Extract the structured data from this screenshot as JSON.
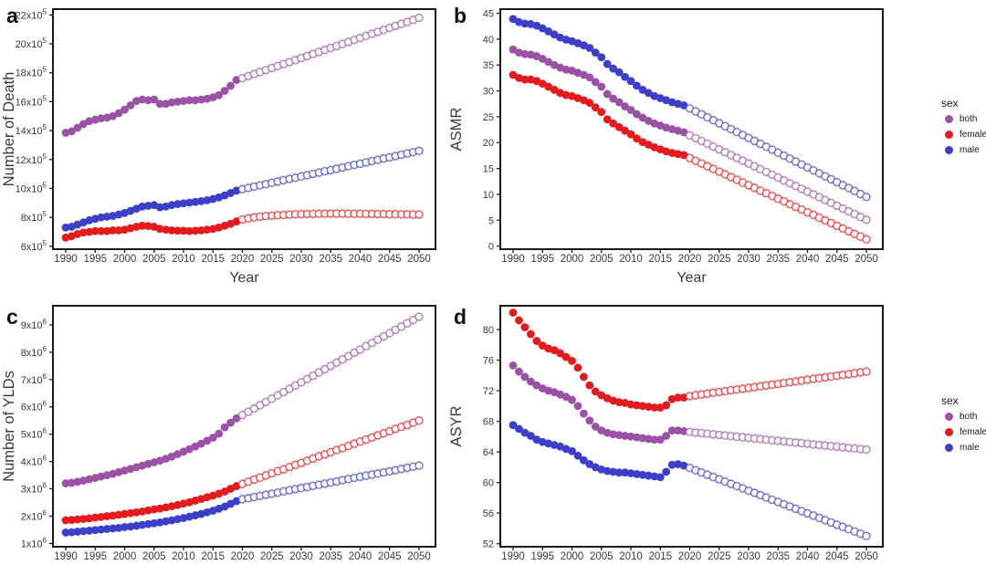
{
  "figure": {
    "background": "#ffffff"
  },
  "legend": {
    "title": "sex",
    "items": [
      {
        "label": "both",
        "color": "#9B51A5"
      },
      {
        "label": "female",
        "color": "#E41A1C"
      },
      {
        "label": "male",
        "color": "#3B3FC9"
      }
    ]
  },
  "chart_data": [
    {
      "id": "a",
      "row": 1,
      "type": "scatter",
      "panel_label": "a",
      "xlabel": "Year",
      "ylabel": "Number of Death",
      "x_range": [
        1990,
        2050
      ],
      "x_ticks": [
        1990,
        1995,
        2000,
        2005,
        2010,
        2015,
        2020,
        2025,
        2030,
        2035,
        2040,
        2045,
        2050
      ],
      "ylim": [
        5.8,
        22.4
      ],
      "y_scale_note": "values in units of 1e5",
      "y_ticks": [
        {
          "v": 6,
          "label": "6x10^5"
        },
        {
          "v": 8,
          "label": "8x10^5"
        },
        {
          "v": 10,
          "label": "10x10^5"
        },
        {
          "v": 12,
          "label": "12x10^5"
        },
        {
          "v": 14,
          "label": "14x10^5"
        },
        {
          "v": 16,
          "label": "16x10^5"
        },
        {
          "v": 18,
          "label": "18x10^5"
        },
        {
          "v": 20,
          "label": "20x10^5"
        },
        {
          "v": 22,
          "label": "22x10^5"
        }
      ],
      "filled_until": 2019,
      "grid": false,
      "legend_position": "outside-right",
      "series": [
        {
          "name": "both",
          "color": "#9B51A5",
          "values": [
            13.85,
            13.95,
            14.2,
            14.45,
            14.65,
            14.75,
            14.85,
            14.9,
            15.0,
            15.2,
            15.45,
            15.75,
            16.05,
            16.15,
            16.1,
            16.15,
            15.85,
            15.85,
            15.95,
            16.0,
            16.05,
            16.1,
            16.1,
            16.15,
            16.2,
            16.3,
            16.45,
            16.75,
            17.1,
            17.5,
            17.63,
            17.77,
            17.91,
            18.05,
            18.19,
            18.33,
            18.46,
            18.6,
            18.74,
            18.88,
            19.02,
            19.16,
            19.3,
            19.44,
            19.58,
            19.72,
            19.85,
            19.99,
            20.13,
            20.27,
            20.41,
            20.55,
            20.69,
            20.83,
            20.97,
            21.11,
            21.24,
            21.38,
            21.52,
            21.66,
            21.8
          ]
        },
        {
          "name": "female",
          "color": "#E41A1C",
          "values": [
            6.6,
            6.7,
            6.85,
            6.95,
            7.0,
            7.05,
            7.05,
            7.05,
            7.1,
            7.1,
            7.15,
            7.25,
            7.35,
            7.42,
            7.4,
            7.35,
            7.2,
            7.15,
            7.1,
            7.08,
            7.08,
            7.05,
            7.08,
            7.1,
            7.15,
            7.2,
            7.3,
            7.42,
            7.55,
            7.72,
            7.85,
            7.93,
            8.0,
            8.05,
            8.09,
            8.12,
            8.15,
            8.17,
            8.19,
            8.21,
            8.22,
            8.23,
            8.24,
            8.25,
            8.25,
            8.26,
            8.26,
            8.26,
            8.25,
            8.25,
            8.25,
            8.24,
            8.24,
            8.23,
            8.23,
            8.22,
            8.22,
            8.21,
            8.21,
            8.2,
            8.2
          ]
        },
        {
          "name": "male",
          "color": "#3B3FC9",
          "values": [
            7.3,
            7.35,
            7.5,
            7.65,
            7.8,
            7.9,
            8.0,
            8.05,
            8.1,
            8.2,
            8.3,
            8.45,
            8.6,
            8.75,
            8.8,
            8.85,
            8.7,
            8.75,
            8.85,
            8.92,
            8.97,
            9.02,
            9.07,
            9.12,
            9.18,
            9.27,
            9.38,
            9.52,
            9.68,
            9.85,
            9.95,
            10.04,
            10.13,
            10.22,
            10.3,
            10.39,
            10.48,
            10.57,
            10.66,
            10.74,
            10.83,
            10.92,
            11.01,
            11.1,
            11.19,
            11.27,
            11.36,
            11.45,
            11.54,
            11.63,
            11.71,
            11.8,
            11.89,
            11.98,
            12.07,
            12.15,
            12.24,
            12.33,
            12.42,
            12.51,
            12.6
          ]
        }
      ]
    },
    {
      "id": "b",
      "row": 1,
      "type": "scatter",
      "panel_label": "b",
      "xlabel": "Year",
      "ylabel": "ASMR",
      "x_range": [
        1990,
        2050
      ],
      "x_ticks": [
        1990,
        1995,
        2000,
        2005,
        2010,
        2015,
        2020,
        2025,
        2030,
        2035,
        2040,
        2045,
        2050
      ],
      "ylim": [
        -0.6,
        45.8
      ],
      "y_ticks": [
        {
          "v": 0,
          "label": "0"
        },
        {
          "v": 5,
          "label": "5"
        },
        {
          "v": 10,
          "label": "10"
        },
        {
          "v": 15,
          "label": "15"
        },
        {
          "v": 20,
          "label": "20"
        },
        {
          "v": 25,
          "label": "25"
        },
        {
          "v": 30,
          "label": "30"
        },
        {
          "v": 35,
          "label": "35"
        },
        {
          "v": 40,
          "label": "40"
        },
        {
          "v": 45,
          "label": "45"
        }
      ],
      "filled_until": 2019,
      "grid": false,
      "legend_position": "outside-right",
      "series": [
        {
          "name": "both",
          "color": "#9B51A5",
          "values": [
            38.0,
            37.4,
            37.1,
            37.0,
            36.7,
            36.2,
            35.6,
            35.0,
            34.5,
            34.1,
            33.9,
            33.5,
            33.1,
            32.6,
            31.7,
            30.8,
            29.4,
            28.5,
            27.8,
            27.0,
            26.3,
            25.5,
            24.8,
            24.2,
            23.7,
            23.3,
            22.9,
            22.6,
            22.3,
            22.0,
            21.4,
            20.86,
            20.31,
            19.77,
            19.23,
            18.68,
            18.14,
            17.59,
            17.05,
            16.51,
            15.96,
            15.42,
            14.87,
            14.33,
            13.79,
            13.24,
            12.7,
            12.15,
            11.61,
            11.07,
            10.52,
            9.98,
            9.43,
            8.89,
            8.35,
            7.8,
            7.26,
            6.71,
            6.17,
            5.63,
            5.1
          ]
        },
        {
          "name": "female",
          "color": "#E41A1C",
          "values": [
            33.1,
            32.5,
            32.2,
            32.2,
            31.9,
            31.4,
            30.8,
            30.2,
            29.6,
            29.2,
            29.0,
            28.6,
            28.2,
            27.7,
            26.8,
            25.9,
            24.5,
            23.7,
            23.0,
            22.3,
            21.6,
            20.8,
            20.1,
            19.6,
            19.1,
            18.7,
            18.3,
            18.0,
            17.8,
            17.6,
            17.0,
            16.48,
            15.95,
            15.43,
            14.91,
            14.38,
            13.86,
            13.34,
            12.81,
            12.29,
            11.77,
            11.24,
            10.72,
            10.2,
            9.67,
            9.15,
            8.63,
            8.1,
            7.58,
            7.06,
            6.53,
            6.01,
            5.49,
            4.96,
            4.44,
            3.92,
            3.39,
            2.87,
            2.35,
            1.82,
            1.3
          ]
        },
        {
          "name": "male",
          "color": "#3B3FC9",
          "values": [
            43.9,
            43.3,
            43.0,
            42.9,
            42.6,
            42.1,
            41.5,
            40.9,
            40.3,
            39.9,
            39.6,
            39.2,
            38.8,
            38.3,
            37.4,
            36.5,
            35.2,
            34.3,
            33.6,
            32.7,
            31.9,
            31.0,
            30.2,
            29.6,
            29.0,
            28.6,
            28.2,
            27.8,
            27.5,
            27.2,
            26.6,
            26.03,
            25.46,
            24.89,
            24.32,
            23.75,
            23.18,
            22.61,
            22.04,
            21.47,
            20.9,
            20.33,
            19.76,
            19.19,
            18.62,
            18.05,
            17.48,
            16.91,
            16.34,
            15.77,
            15.2,
            14.63,
            14.06,
            13.49,
            12.92,
            12.35,
            11.78,
            11.21,
            10.64,
            10.07,
            9.5
          ]
        }
      ]
    },
    {
      "id": "c",
      "row": 2,
      "type": "scatter",
      "panel_label": "c",
      "xlabel": "",
      "ylabel": "Number of YLDs",
      "x_range": [
        1990,
        2050
      ],
      "x_ticks": [
        1990,
        1995,
        2000,
        2005,
        2010,
        2015,
        2020,
        2025,
        2030,
        2035,
        2040,
        2045,
        2050
      ],
      "ylim": [
        0.88,
        9.7
      ],
      "y_scale_note": "values in units of 1e6",
      "y_ticks": [
        {
          "v": 1,
          "label": "1x10^6"
        },
        {
          "v": 2,
          "label": "2x10^6"
        },
        {
          "v": 3,
          "label": "3x10^6"
        },
        {
          "v": 4,
          "label": "4x10^6"
        },
        {
          "v": 5,
          "label": "5x10^6"
        },
        {
          "v": 6,
          "label": "6x10^6"
        },
        {
          "v": 7,
          "label": "7x10^6"
        },
        {
          "v": 8,
          "label": "8x10^6"
        },
        {
          "v": 9,
          "label": "9x10^6"
        }
      ],
      "filled_until": 2019,
      "grid": false,
      "legend_position": "outside-right",
      "series": [
        {
          "name": "both",
          "color": "#9B51A5",
          "values": [
            3.2,
            3.22,
            3.26,
            3.3,
            3.35,
            3.4,
            3.45,
            3.5,
            3.55,
            3.61,
            3.67,
            3.73,
            3.79,
            3.85,
            3.91,
            3.97,
            4.03,
            4.1,
            4.18,
            4.27,
            4.36,
            4.45,
            4.55,
            4.65,
            4.76,
            4.87,
            5.02,
            5.25,
            5.42,
            5.58,
            5.7,
            5.82,
            5.94,
            6.06,
            6.18,
            6.3,
            6.42,
            6.54,
            6.66,
            6.78,
            6.9,
            7.02,
            7.14,
            7.26,
            7.38,
            7.5,
            7.62,
            7.74,
            7.86,
            7.98,
            8.1,
            8.22,
            8.34,
            8.46,
            8.58,
            8.7,
            8.82,
            8.94,
            9.06,
            9.18,
            9.3
          ]
        },
        {
          "name": "female",
          "color": "#E41A1C",
          "values": [
            1.85,
            1.86,
            1.88,
            1.9,
            1.92,
            1.95,
            1.97,
            2.0,
            2.02,
            2.05,
            2.08,
            2.11,
            2.14,
            2.17,
            2.21,
            2.25,
            2.28,
            2.32,
            2.36,
            2.41,
            2.46,
            2.51,
            2.57,
            2.63,
            2.69,
            2.75,
            2.82,
            2.9,
            3.0,
            3.1,
            3.18,
            3.26,
            3.34,
            3.41,
            3.49,
            3.57,
            3.65,
            3.72,
            3.8,
            3.88,
            3.95,
            4.03,
            4.11,
            4.19,
            4.26,
            4.34,
            4.42,
            4.49,
            4.57,
            4.65,
            4.73,
            4.8,
            4.88,
            4.96,
            5.03,
            5.11,
            5.19,
            5.27,
            5.34,
            5.42,
            5.5
          ]
        },
        {
          "name": "male",
          "color": "#3B3FC9",
          "values": [
            1.4,
            1.41,
            1.43,
            1.45,
            1.47,
            1.49,
            1.51,
            1.53,
            1.55,
            1.57,
            1.6,
            1.62,
            1.65,
            1.68,
            1.71,
            1.74,
            1.77,
            1.81,
            1.85,
            1.89,
            1.93,
            1.98,
            2.03,
            2.08,
            2.14,
            2.2,
            2.27,
            2.35,
            2.45,
            2.55,
            2.62,
            2.66,
            2.7,
            2.74,
            2.78,
            2.82,
            2.86,
            2.91,
            2.95,
            2.99,
            3.03,
            3.07,
            3.11,
            3.15,
            3.19,
            3.23,
            3.27,
            3.32,
            3.36,
            3.4,
            3.44,
            3.48,
            3.52,
            3.56,
            3.6,
            3.64,
            3.68,
            3.73,
            3.77,
            3.81,
            3.85
          ]
        }
      ]
    },
    {
      "id": "d",
      "row": 2,
      "type": "scatter",
      "panel_label": "d",
      "xlabel": "",
      "ylabel": "ASYR",
      "x_range": [
        1990,
        2050
      ],
      "x_ticks": [
        1990,
        1995,
        2000,
        2005,
        2010,
        2015,
        2020,
        2025,
        2030,
        2035,
        2040,
        2045,
        2050
      ],
      "ylim": [
        51.6,
        83.1
      ],
      "y_ticks": [
        {
          "v": 52,
          "label": "52"
        },
        {
          "v": 56,
          "label": "56"
        },
        {
          "v": 60,
          "label": "60"
        },
        {
          "v": 64,
          "label": "64"
        },
        {
          "v": 68,
          "label": "68"
        },
        {
          "v": 72,
          "label": "72"
        },
        {
          "v": 76,
          "label": "76"
        },
        {
          "v": 80,
          "label": "80"
        }
      ],
      "filled_until": 2019,
      "grid": false,
      "legend_position": "outside-right",
      "series": [
        {
          "name": "both",
          "color": "#9B51A5",
          "values": [
            75.3,
            74.5,
            73.8,
            73.2,
            72.7,
            72.3,
            72.0,
            71.8,
            71.5,
            71.2,
            70.8,
            70.0,
            69.0,
            68.1,
            67.3,
            66.8,
            66.5,
            66.3,
            66.2,
            66.1,
            66.0,
            65.9,
            65.8,
            65.7,
            65.6,
            65.6,
            66.1,
            66.8,
            66.8,
            66.7,
            66.6,
            66.52,
            66.45,
            66.37,
            66.29,
            66.22,
            66.14,
            66.06,
            65.99,
            65.91,
            65.83,
            65.75,
            65.68,
            65.6,
            65.52,
            65.45,
            65.37,
            65.29,
            65.22,
            65.14,
            65.06,
            64.98,
            64.91,
            64.83,
            64.75,
            64.68,
            64.6,
            64.52,
            64.45,
            64.37,
            64.3
          ]
        },
        {
          "name": "female",
          "color": "#E41A1C",
          "values": [
            82.2,
            81.2,
            80.3,
            79.4,
            78.5,
            77.9,
            77.5,
            77.3,
            76.9,
            76.4,
            75.9,
            75.0,
            73.8,
            72.7,
            71.9,
            71.4,
            71.0,
            70.7,
            70.5,
            70.4,
            70.2,
            70.1,
            70.0,
            69.9,
            69.8,
            69.8,
            70.1,
            70.9,
            71.1,
            71.1,
            71.3,
            71.41,
            71.51,
            71.62,
            71.73,
            71.83,
            71.94,
            72.05,
            72.15,
            72.26,
            72.37,
            72.47,
            72.58,
            72.68,
            72.79,
            72.9,
            73.0,
            73.11,
            73.22,
            73.32,
            73.43,
            73.54,
            73.64,
            73.75,
            73.86,
            73.96,
            74.07,
            74.17,
            74.28,
            74.39,
            74.5
          ]
        },
        {
          "name": "male",
          "color": "#3B3FC9",
          "values": [
            67.5,
            67.0,
            66.5,
            66.1,
            65.6,
            65.3,
            65.1,
            64.9,
            64.7,
            64.4,
            64.1,
            63.5,
            62.9,
            62.4,
            62.0,
            61.7,
            61.5,
            61.4,
            61.3,
            61.3,
            61.2,
            61.1,
            61.0,
            60.9,
            60.8,
            60.7,
            61.4,
            62.3,
            62.4,
            62.2,
            61.9,
            61.6,
            61.31,
            61.01,
            60.71,
            60.42,
            60.12,
            59.82,
            59.53,
            59.23,
            58.93,
            58.64,
            58.34,
            58.04,
            57.75,
            57.45,
            57.15,
            56.86,
            56.56,
            56.26,
            55.97,
            55.67,
            55.37,
            55.08,
            54.78,
            54.48,
            54.19,
            53.89,
            53.59,
            53.3,
            53.0
          ]
        }
      ]
    }
  ]
}
